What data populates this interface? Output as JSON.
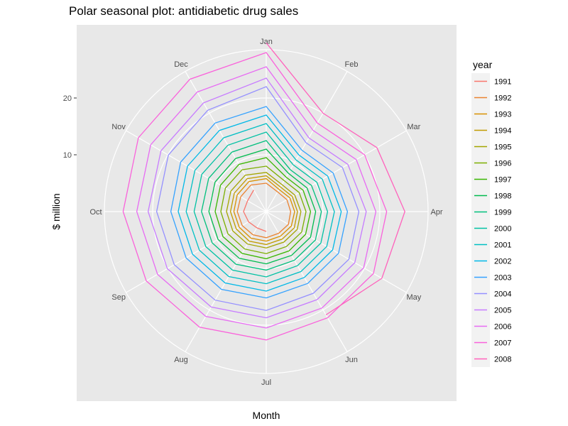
{
  "chart_data": {
    "type": "line",
    "coordinate_system": "polar",
    "title": "Polar seasonal plot: antidiabetic drug sales",
    "xlabel": "Month",
    "ylabel": "$ million",
    "months": [
      "Jan",
      "Feb",
      "Mar",
      "Apr",
      "May",
      "Jun",
      "Jul",
      "Aug",
      "Sep",
      "Oct",
      "Nov",
      "Dec"
    ],
    "r_ticks": [
      10,
      20
    ],
    "r_max": 30,
    "legend_title": "year",
    "legend_position": "right",
    "panel_background": "#e8e8e8",
    "grid_color": "#ffffff",
    "series": [
      {
        "name": "1991",
        "color": "#F8766D",
        "values": [
          null,
          null,
          null,
          null,
          null,
          null,
          3.5,
          3.3,
          3.6,
          4.0,
          3.8,
          4.4
        ]
      },
      {
        "name": "1992",
        "color": "#EA8331",
        "values": [
          5.0,
          4.0,
          4.2,
          4.3,
          4.5,
          4.4,
          4.6,
          4.7,
          4.9,
          5.1,
          5.2,
          5.4
        ]
      },
      {
        "name": "1993",
        "color": "#D89000",
        "values": [
          5.8,
          4.5,
          4.8,
          5.0,
          5.1,
          5.0,
          5.2,
          5.4,
          5.5,
          5.7,
          5.9,
          6.1
        ]
      },
      {
        "name": "1994",
        "color": "#C09B00",
        "values": [
          6.3,
          5.0,
          5.3,
          5.5,
          5.7,
          5.6,
          5.8,
          6.0,
          6.1,
          6.3,
          6.5,
          6.7
        ]
      },
      {
        "name": "1995",
        "color": "#A3A500",
        "values": [
          6.9,
          5.5,
          5.8,
          6.1,
          6.3,
          6.2,
          6.4,
          6.6,
          6.8,
          7.0,
          7.2,
          7.4
        ]
      },
      {
        "name": "1996",
        "color": "#7CAE00",
        "values": [
          8.0,
          6.3,
          6.7,
          7.0,
          7.2,
          7.1,
          7.4,
          7.6,
          7.8,
          8.0,
          8.3,
          8.5
        ]
      },
      {
        "name": "1997",
        "color": "#39B600",
        "values": [
          9.5,
          7.0,
          7.5,
          7.8,
          8.0,
          8.0,
          8.3,
          8.5,
          8.8,
          9.0,
          9.3,
          9.6
        ]
      },
      {
        "name": "1998",
        "color": "#00BB4E",
        "values": [
          11.0,
          7.8,
          8.3,
          8.7,
          9.0,
          8.9,
          9.2,
          9.5,
          9.8,
          10.1,
          10.4,
          10.8
        ]
      },
      {
        "name": "1999",
        "color": "#00BF7D",
        "values": [
          12.5,
          8.5,
          9.2,
          9.7,
          10.0,
          9.9,
          10.3,
          10.7,
          11.0,
          11.4,
          11.7,
          12.1
        ]
      },
      {
        "name": "2000",
        "color": "#00C1A3",
        "values": [
          14.0,
          9.5,
          10.3,
          10.8,
          11.1,
          11.0,
          11.5,
          11.9,
          12.3,
          12.7,
          13.1,
          13.5
        ]
      },
      {
        "name": "2001",
        "color": "#00BFC4",
        "values": [
          15.5,
          10.5,
          11.4,
          12.0,
          12.3,
          12.2,
          12.7,
          13.2,
          13.6,
          14.1,
          14.5,
          15.0
        ]
      },
      {
        "name": "2002",
        "color": "#00B8E7",
        "values": [
          17.0,
          11.5,
          12.5,
          13.2,
          13.5,
          13.4,
          14.0,
          14.5,
          15.0,
          15.5,
          16.0,
          16.5
        ]
      },
      {
        "name": "2003",
        "color": "#35A2FF",
        "values": [
          18.5,
          12.5,
          13.6,
          14.3,
          14.7,
          14.6,
          15.2,
          15.8,
          16.3,
          16.8,
          17.4,
          18.0
        ]
      },
      {
        "name": "2004",
        "color": "#9590FF",
        "values": [
          22.0,
          14.0,
          15.5,
          16.3,
          16.8,
          16.6,
          17.4,
          18.0,
          18.7,
          19.3,
          19.9,
          20.6
        ]
      },
      {
        "name": "2005",
        "color": "#C77CFF",
        "values": [
          23.5,
          15.0,
          16.6,
          17.6,
          18.0,
          17.9,
          18.7,
          19.4,
          20.1,
          20.8,
          21.4,
          22.1
        ]
      },
      {
        "name": "2006",
        "color": "#E76BF3",
        "values": [
          25.5,
          16.5,
          18.3,
          19.3,
          19.8,
          19.6,
          20.5,
          21.3,
          22.1,
          22.8,
          23.5,
          24.3
        ]
      },
      {
        "name": "2007",
        "color": "#FA62DB",
        "values": [
          28.0,
          18.0,
          20.0,
          21.2,
          21.8,
          21.6,
          22.6,
          23.5,
          24.4,
          25.2,
          26.0,
          26.9
        ]
      },
      {
        "name": "2008",
        "color": "#FF62BC",
        "values": [
          29.7,
          20.0,
          22.5,
          24.4,
          23.5,
          21.0,
          null,
          null,
          null,
          null,
          null,
          null
        ]
      }
    ]
  }
}
